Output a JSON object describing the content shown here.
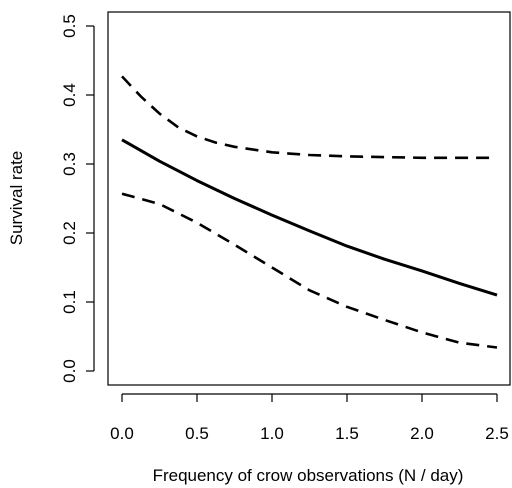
{
  "chart_data": {
    "type": "line",
    "title": "",
    "xlabel": "Frequency of crow observations (N / day)",
    "ylabel": "Survival rate",
    "xlim": [
      0,
      2.5
    ],
    "ylim": [
      0,
      0.5
    ],
    "x_ticks": [
      0.0,
      0.5,
      1.0,
      1.5,
      2.0,
      2.5
    ],
    "x_tick_labels": [
      "0.0",
      "0.5",
      "1.0",
      "1.5",
      "2.0",
      "2.5"
    ],
    "y_ticks": [
      0.0,
      0.1,
      0.2,
      0.3,
      0.4,
      0.5
    ],
    "y_tick_labels": [
      "0.0",
      "0.1",
      "0.2",
      "0.3",
      "0.4",
      "0.5"
    ],
    "grid": false,
    "legend": "none",
    "series": [
      {
        "role": "estimate",
        "line_style": "solid",
        "x": [
          0.0,
          0.25,
          0.5,
          0.75,
          1.0,
          1.25,
          1.5,
          1.75,
          2.0,
          2.25,
          2.5
        ],
        "y": [
          0.335,
          0.304,
          0.276,
          0.25,
          0.226,
          0.203,
          0.181,
          0.162,
          0.145,
          0.127,
          0.11
        ]
      },
      {
        "role": "upper_ci",
        "line_style": "dashed",
        "x": [
          0.0,
          0.125,
          0.25,
          0.375,
          0.5,
          0.625,
          0.75,
          1.0,
          1.25,
          1.5,
          1.75,
          2.0,
          2.25,
          2.5
        ],
        "y": [
          0.427,
          0.398,
          0.373,
          0.353,
          0.34,
          0.331,
          0.325,
          0.317,
          0.313,
          0.311,
          0.31,
          0.309,
          0.309,
          0.309
        ]
      },
      {
        "role": "lower_ci",
        "line_style": "dashed",
        "x": [
          0.0,
          0.25,
          0.5,
          0.75,
          1.0,
          1.25,
          1.5,
          1.75,
          2.0,
          2.25,
          2.5
        ],
        "y": [
          0.257,
          0.242,
          0.215,
          0.183,
          0.15,
          0.117,
          0.093,
          0.074,
          0.056,
          0.041,
          0.034
        ]
      }
    ],
    "colors": {
      "line": "#000000",
      "axis": "#000000",
      "background": "#ffffff"
    }
  }
}
